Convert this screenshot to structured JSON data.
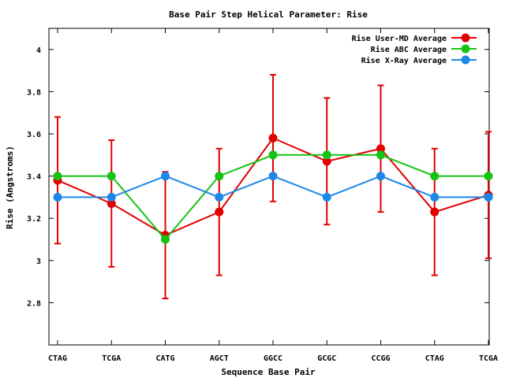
{
  "chart_data": {
    "type": "line",
    "title": "Base Pair Step Helical Parameter: Rise",
    "xlabel": "Sequence Base Pair",
    "ylabel": "Rise (Angstroms)",
    "categories": [
      "CTAG",
      "TCGA",
      "CATG",
      "AGCT",
      "GGCC",
      "GCGC",
      "CCGG",
      "CTAG",
      "TCGA"
    ],
    "ylim": [
      2.6,
      4.1
    ],
    "yticks": [
      "2.8",
      "3",
      "3.2",
      "3.4",
      "3.6",
      "3.8",
      "4"
    ],
    "grid": false,
    "legend_position": "top-right",
    "series": [
      {
        "name": "Rise User-MD Average",
        "color": "#e30000",
        "values": [
          3.38,
          3.27,
          3.12,
          3.23,
          3.58,
          3.47,
          3.53,
          3.23,
          3.31
        ],
        "error": [
          0.3,
          0.3,
          0.3,
          0.3,
          0.3,
          0.3,
          0.3,
          0.3,
          0.3
        ]
      },
      {
        "name": "Rise ABC Average",
        "color": "#15c315",
        "values": [
          3.4,
          3.4,
          3.1,
          3.4,
          3.5,
          3.5,
          3.5,
          3.4,
          3.4
        ]
      },
      {
        "name": "Rise X-Ray Average",
        "color": "#1c87e6",
        "values": [
          3.3,
          3.3,
          3.4,
          3.3,
          3.4,
          3.3,
          3.4,
          3.3,
          3.3
        ]
      }
    ]
  }
}
